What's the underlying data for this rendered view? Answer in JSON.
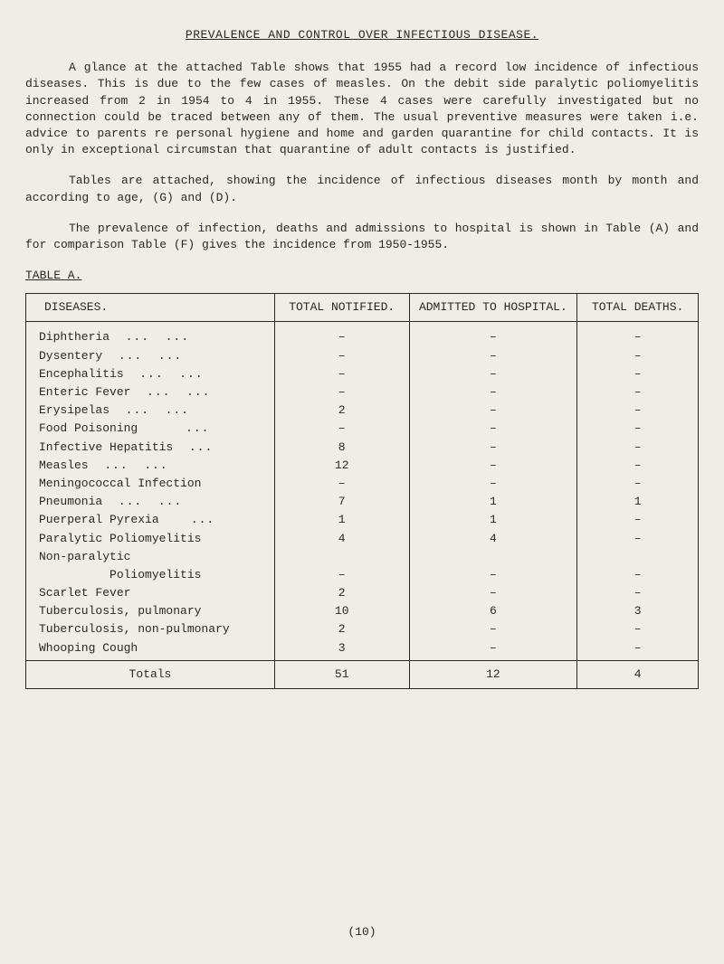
{
  "title": "PREVALENCE AND CONTROL OVER INFECTIOUS DISEASE.",
  "para1": "A glance at the attached Table shows that 1955 had a record low incidence of infectious diseases. This is due to the few cases of measles. On the debit side paralytic poliomyelitis increased from 2 in 1954 to 4 in 1955. These 4 cases were carefully investigated but no connection could be traced between any of them. The usual preventive measures were taken i.e. advice to parents re personal hygiene and home and garden quarantine for child contacts. It is only in exceptional circumstan that quarantine of adult contacts is justified.",
  "para2": "Tables are attached, showing the incidence of infectious diseases month by month and according to age, (G) and (D).",
  "para3": "The prevalence of infection, deaths and admissions to hospital is shown in Table (A) and for comparison Table (F) gives the incidence from 1950-1955.",
  "table_label": "TABLE A.",
  "columns": {
    "disease": "DISEASES.",
    "notified": "TOTAL NOTIFIED.",
    "admitted": "ADMITTED TO HOSPITAL.",
    "deaths": "TOTAL DEATHS."
  },
  "rows": [
    {
      "disease": "Diphtheria",
      "dots": "...  ...",
      "notified": "–",
      "admitted": "–",
      "deaths": "–"
    },
    {
      "disease": "Dysentery",
      "dots": "...  ...",
      "notified": "–",
      "admitted": "–",
      "deaths": "–"
    },
    {
      "disease": "Encephalitis",
      "dots": "...  ...",
      "notified": "–",
      "admitted": "–",
      "deaths": "–"
    },
    {
      "disease": "Enteric Fever",
      "dots": "...  ...",
      "notified": "–",
      "admitted": "–",
      "deaths": "–"
    },
    {
      "disease": "Erysipelas",
      "dots": "...  ...",
      "notified": "2",
      "admitted": "–",
      "deaths": "–"
    },
    {
      "disease": "Food Poisoning",
      "dots": "    ...",
      "notified": "–",
      "admitted": "–",
      "deaths": "–"
    },
    {
      "disease": "Infective Hepatitis",
      "dots": "...",
      "notified": "8",
      "admitted": "–",
      "deaths": "–"
    },
    {
      "disease": "Measles",
      "dots": "...  ...",
      "notified": "12",
      "admitted": "–",
      "deaths": "–"
    },
    {
      "disease": "Meningococcal Infection",
      "dots": "",
      "notified": "–",
      "admitted": "–",
      "deaths": "–"
    },
    {
      "disease": "Pneumonia",
      "dots": "...  ...",
      "notified": "7",
      "admitted": "1",
      "deaths": "1"
    },
    {
      "disease": "Puerperal Pyrexia",
      "dots": "  ...",
      "notified": "1",
      "admitted": "1",
      "deaths": "–"
    },
    {
      "disease": "Paralytic Poliomyelitis",
      "dots": "",
      "notified": "4",
      "admitted": "4",
      "deaths": "–"
    },
    {
      "disease": "Non-paralytic",
      "dots": "",
      "notified": "",
      "admitted": "",
      "deaths": ""
    },
    {
      "disease": "          Poliomyelitis",
      "dots": "",
      "notified": "–",
      "admitted": "–",
      "deaths": "–"
    },
    {
      "disease": "Scarlet Fever",
      "dots": "",
      "notified": "2",
      "admitted": "–",
      "deaths": "–"
    },
    {
      "disease": "Tuberculosis, pulmonary",
      "dots": "",
      "notified": "10",
      "admitted": "6",
      "deaths": "3"
    },
    {
      "disease": "Tuberculosis, non-pulmonary",
      "dots": "",
      "notified": "2",
      "admitted": "–",
      "deaths": "–"
    },
    {
      "disease": "Whooping Cough",
      "dots": "",
      "notified": "3",
      "admitted": "–",
      "deaths": "–"
    }
  ],
  "totals": {
    "label": "Totals",
    "notified": "51",
    "admitted": "12",
    "deaths": "4"
  },
  "page_num": "(10)"
}
